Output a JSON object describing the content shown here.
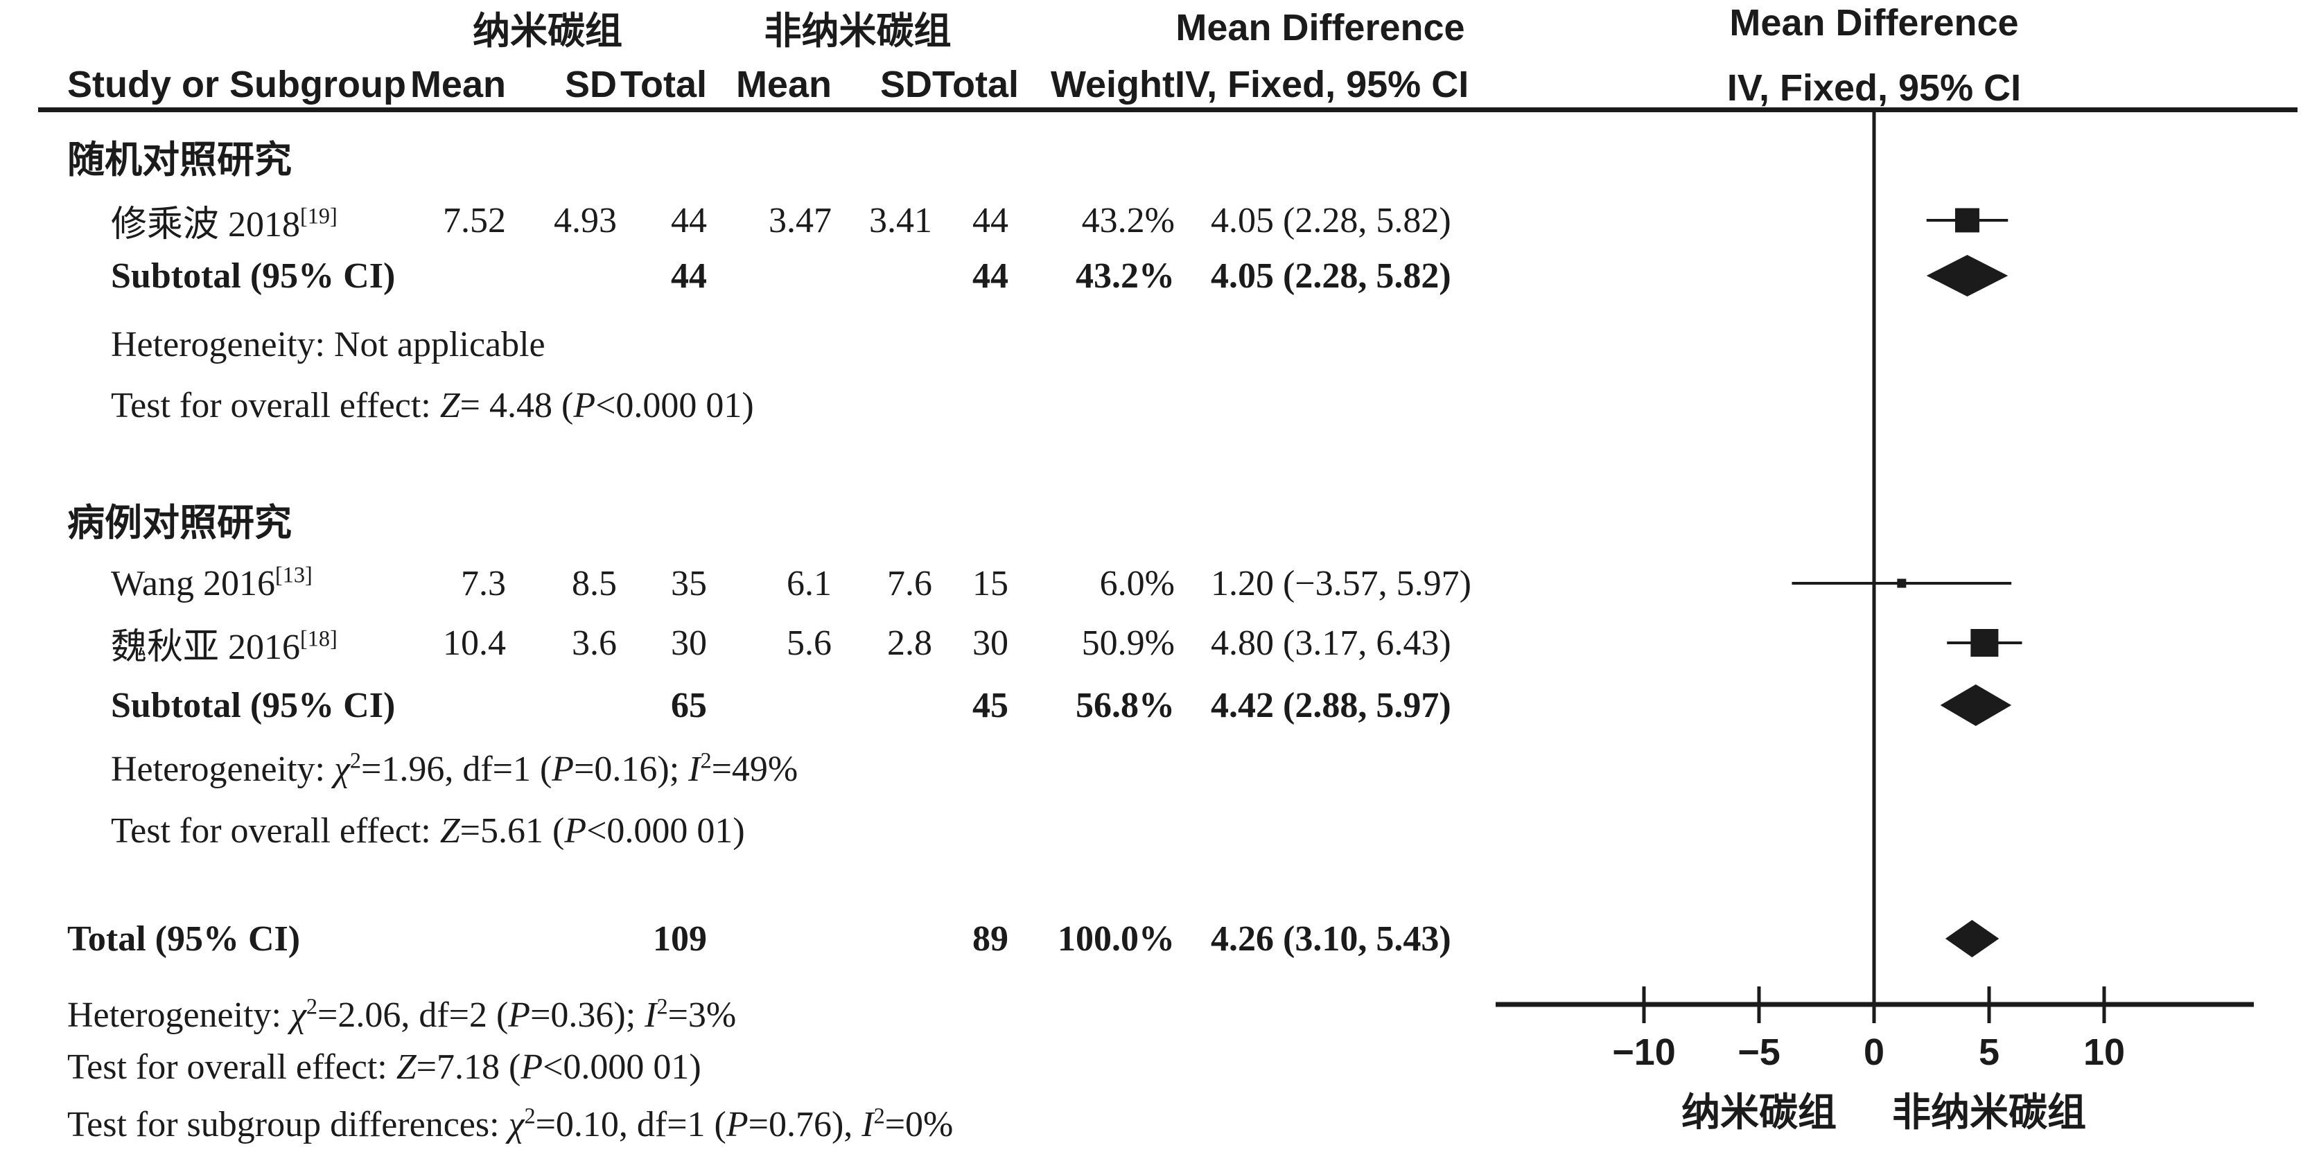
{
  "header": {
    "group1": "纳米碳组",
    "group2": "非纳米碳组",
    "md_left": "Mean Difference",
    "md_right": "Mean Difference",
    "study": "Study or Subgroup",
    "mean1": "Mean",
    "sd1": "SD",
    "total1": "Total",
    "mean2": "Mean",
    "sd2": "SD",
    "total2": "Total",
    "weight": "Weight",
    "method_left": "IV, Fixed, 95% CI",
    "method_right": "IV, Fixed, 95% CI"
  },
  "sections": {
    "rct": {
      "title": "随机对照研究",
      "study1": {
        "name_segs": [
          {
            "t": "修乘波 2018"
          },
          {
            "t": "[19]",
            "s": "sup"
          }
        ],
        "mean1": "7.52",
        "sd1": "4.93",
        "total1": "44",
        "mean2": "3.47",
        "sd2": "3.41",
        "total2": "44",
        "weight": "43.2%",
        "ci": "4.05 (2.28, 5.82)"
      },
      "subtotal": {
        "label": "Subtotal (95% CI)",
        "total1": "44",
        "total2": "44",
        "weight": "43.2%",
        "ci": "4.05 (2.28, 5.82)"
      },
      "het_segs": [
        {
          "t": "Heterogeneity: Not applicable"
        }
      ],
      "test_segs": [
        {
          "t": "Test for overall effect: "
        },
        {
          "t": "Z",
          "s": "i"
        },
        {
          "t": "= 4.48 ("
        },
        {
          "t": "P",
          "s": "i"
        },
        {
          "t": "<0.000 01)"
        }
      ]
    },
    "cc": {
      "title": "病例对照研究",
      "wang": {
        "name_segs": [
          {
            "t": "Wang 2016"
          },
          {
            "t": "[13]",
            "s": "sup"
          }
        ],
        "mean1": "7.3",
        "sd1": "8.5",
        "total1": "35",
        "mean2": "6.1",
        "sd2": "7.6",
        "total2": "15",
        "weight": "6.0%",
        "ci": "1.20 (−3.57, 5.97)"
      },
      "wei": {
        "name_segs": [
          {
            "t": "魏秋亚 2016"
          },
          {
            "t": "[18]",
            "s": "sup"
          }
        ],
        "mean1": "10.4",
        "sd1": "3.6",
        "total1": "30",
        "mean2": "5.6",
        "sd2": "2.8",
        "total2": "30",
        "weight": "50.9%",
        "ci": "4.80 (3.17, 6.43)"
      },
      "subtotal": {
        "label": "Subtotal (95% CI)",
        "total1": "65",
        "total2": "45",
        "weight": "56.8%",
        "ci": "4.42 (2.88, 5.97)"
      },
      "het_segs": [
        {
          "t": "Heterogeneity: "
        },
        {
          "t": "χ",
          "s": "i"
        },
        {
          "t": "2",
          "s": "sup"
        },
        {
          "t": "=1.96, df=1 ("
        },
        {
          "t": "P",
          "s": "i"
        },
        {
          "t": "=0.16); "
        },
        {
          "t": "I",
          "s": "i"
        },
        {
          "t": "2",
          "s": "sup"
        },
        {
          "t": "=49%"
        }
      ],
      "test_segs": [
        {
          "t": "Test for overall effect: "
        },
        {
          "t": "Z",
          "s": "i"
        },
        {
          "t": "=5.61 ("
        },
        {
          "t": "P",
          "s": "i"
        },
        {
          "t": "<0.000 01)"
        }
      ]
    }
  },
  "totals": {
    "label": "Total (95% CI)",
    "total1": "109",
    "total2": "89",
    "weight": "100.0%",
    "ci": "4.26 (3.10, 5.43)",
    "het_segs": [
      {
        "t": "Heterogeneity: "
      },
      {
        "t": "χ",
        "s": "i"
      },
      {
        "t": "2",
        "s": "sup"
      },
      {
        "t": "=2.06, df=2 ("
      },
      {
        "t": "P",
        "s": "i"
      },
      {
        "t": "=0.36); "
      },
      {
        "t": "I",
        "s": "i"
      },
      {
        "t": "2",
        "s": "sup"
      },
      {
        "t": "=3%"
      }
    ],
    "test_segs": [
      {
        "t": "Test for overall effect: "
      },
      {
        "t": "Z",
        "s": "i"
      },
      {
        "t": "=7.18 ("
      },
      {
        "t": "P",
        "s": "i"
      },
      {
        "t": "<0.000 01)"
      }
    ],
    "subgroup_segs": [
      {
        "t": "Test for subgroup differences: "
      },
      {
        "t": "χ",
        "s": "i"
      },
      {
        "t": "2",
        "s": "sup"
      },
      {
        "t": "=0.10, df=1 ("
      },
      {
        "t": "P",
        "s": "i"
      },
      {
        "t": "=0.76), "
      },
      {
        "t": "I",
        "s": "i"
      },
      {
        "t": "2",
        "s": "sup"
      },
      {
        "t": "=0%"
      }
    ]
  },
  "chart_data": {
    "type": "forest",
    "title": "",
    "x_ticks": [
      -10,
      -5,
      0,
      5,
      10
    ],
    "x_tick_labels": [
      "−10",
      "−5",
      "0",
      "5",
      "10"
    ],
    "x_range": [
      -16.4,
      16.4
    ],
    "zero_line": 0,
    "favors_left_label": "纳米碳组",
    "favors_right_label": "非纳米碳组",
    "effect_measure": "Mean Difference, IV, Fixed, 95% CI",
    "entries": [
      {
        "id": "study1",
        "label": "修乘波 2018 [19]",
        "marker": "square",
        "md": 4.05,
        "ci_low": 2.28,
        "ci_high": 5.82,
        "weight_pct": 43.2
      },
      {
        "id": "subtotal1",
        "label": "Subtotal (95% CI) 随机对照研究",
        "marker": "diamond",
        "md": 4.05,
        "ci_low": 2.28,
        "ci_high": 5.82
      },
      {
        "id": "wang",
        "label": "Wang 2016 [13]",
        "marker": "square",
        "md": 1.2,
        "ci_low": -3.57,
        "ci_high": 5.97,
        "weight_pct": 6.0
      },
      {
        "id": "wei",
        "label": "魏秋亚 2016 [18]",
        "marker": "square",
        "md": 4.8,
        "ci_low": 3.17,
        "ci_high": 6.43,
        "weight_pct": 50.9
      },
      {
        "id": "subtotal2",
        "label": "Subtotal (95% CI) 病例对照研究",
        "marker": "diamond",
        "md": 4.42,
        "ci_low": 2.88,
        "ci_high": 5.97
      },
      {
        "id": "total",
        "label": "Total (95% CI)",
        "marker": "diamond",
        "md": 4.26,
        "ci_low": 3.1,
        "ci_high": 5.43
      }
    ]
  },
  "colors": {
    "ink": "#1b1b1b"
  }
}
